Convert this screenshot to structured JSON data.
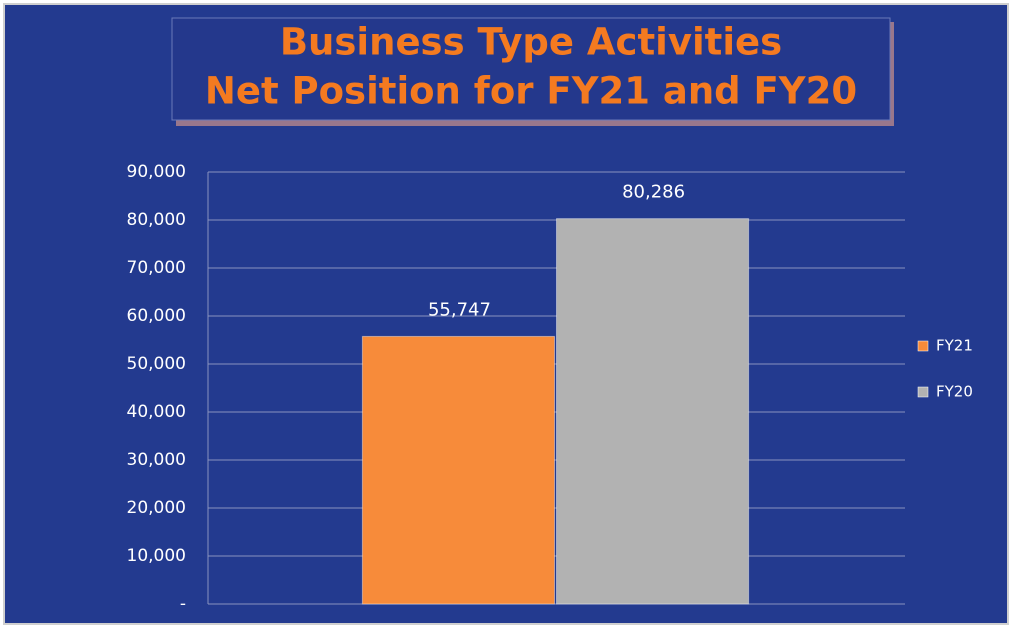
{
  "chart_data": {
    "type": "bar",
    "title": [
      "Business Type Activities",
      "Net Position for FY21 and FY20"
    ],
    "categories": [
      null
    ],
    "series": [
      {
        "name": "FY21",
        "color": "#f78b3a",
        "values": [
          55747
        ],
        "value_labels": [
          "55,747"
        ]
      },
      {
        "name": "FY20",
        "color": "#b2b2b2",
        "values": [
          80286
        ],
        "value_labels": [
          "80,286"
        ]
      }
    ],
    "ylim": [
      0,
      90000
    ],
    "yticks": [
      {
        "value": 0,
        "label": "-"
      },
      {
        "value": 10000,
        "label": "10,000"
      },
      {
        "value": 20000,
        "label": "20,000"
      },
      {
        "value": 30000,
        "label": "30,000"
      },
      {
        "value": 40000,
        "label": "40,000"
      },
      {
        "value": 50000,
        "label": "50,000"
      },
      {
        "value": 60000,
        "label": "60,000"
      },
      {
        "value": 70000,
        "label": "70,000"
      },
      {
        "value": 80000,
        "label": "80,000"
      },
      {
        "value": 90000,
        "label": "90,000"
      }
    ],
    "grid": true,
    "legend": "right"
  }
}
